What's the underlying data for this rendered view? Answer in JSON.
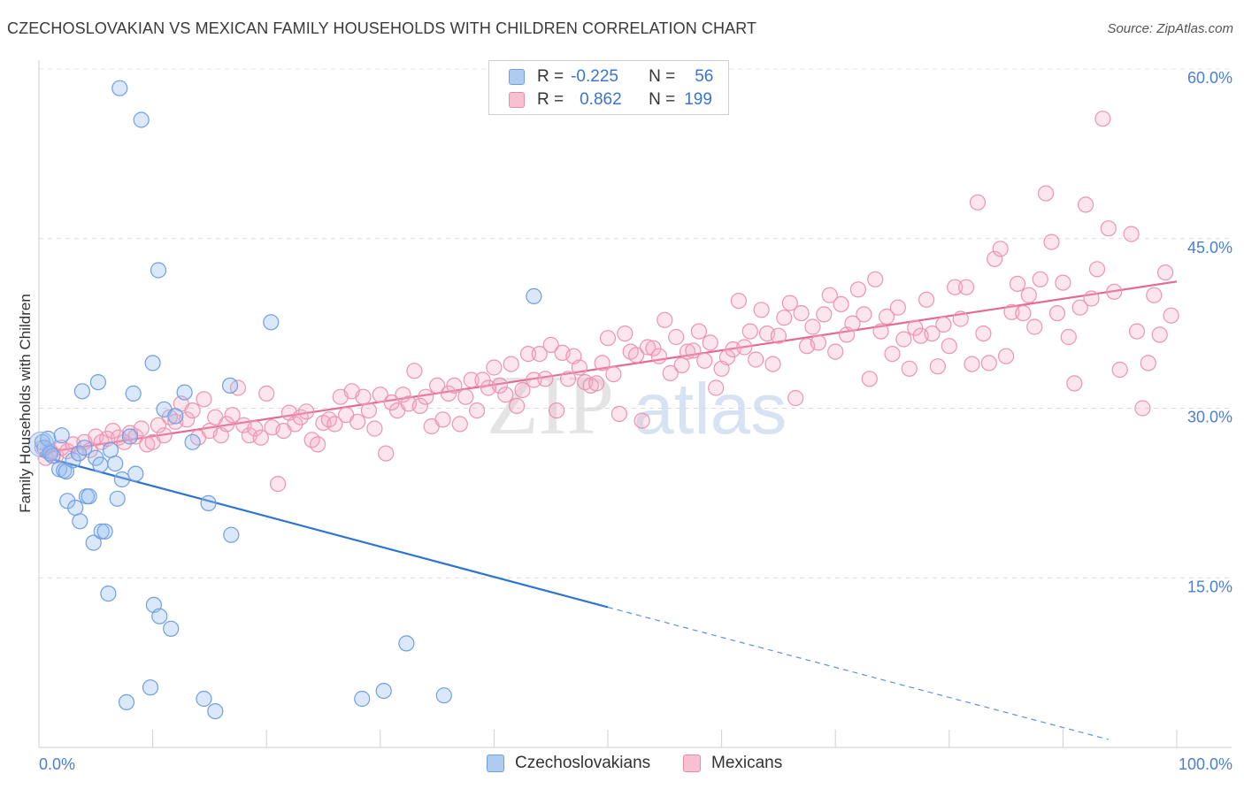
{
  "title": "CZECHOSLOVAKIAN VS MEXICAN FAMILY HOUSEHOLDS WITH CHILDREN CORRELATION CHART",
  "source": "Source: ZipAtlas.com",
  "watermark": "ZIPatlas",
  "legend": {
    "rows": [
      {
        "r_label": "R =",
        "r_value": "-0.225",
        "n_label": "N =",
        "n_value": "56",
        "color": "#aecbf0",
        "border": "#6f9fe0"
      },
      {
        "r_label": "R =",
        "r_value": "0.862",
        "n_label": "N =",
        "n_value": "199",
        "color": "#f8c0d0",
        "border": "#e88aa8"
      }
    ]
  },
  "bottom_legend": [
    {
      "label": "Czechoslovakians",
      "color": "#aecbf0",
      "border": "#6f9fe0"
    },
    {
      "label": "Mexicans",
      "color": "#f8c0d0",
      "border": "#e88aa8"
    }
  ],
  "chart_data": {
    "type": "scatter",
    "title": "CZECHOSLOVAKIAN VS MEXICAN FAMILY HOUSEHOLDS WITH CHILDREN CORRELATION CHART",
    "xlabel": "",
    "ylabel": "Family Households with Children",
    "xlim": [
      0,
      100
    ],
    "ylim": [
      0,
      60
    ],
    "x_tick_labels": [
      "0.0%",
      "100.0%"
    ],
    "y_ticks": [
      15,
      30,
      45,
      60
    ],
    "y_tick_labels": [
      "15.0%",
      "30.0%",
      "45.0%",
      "60.0%"
    ],
    "grid": true,
    "series": [
      {
        "name": "Czechoslovakians",
        "color": "#7aa8e8",
        "trend": {
          "x0": 0,
          "y0": 25.8,
          "x1": 50,
          "y1": 12.4,
          "dashed_to_x": 94,
          "dashed_to_y": 0.7
        },
        "points": [
          [
            0.3,
            27.0
          ],
          [
            0.5,
            26.5
          ],
          [
            0.8,
            27.3
          ],
          [
            1.0,
            26.0
          ],
          [
            1.2,
            25.8
          ],
          [
            1.8,
            24.6
          ],
          [
            2.0,
            27.6
          ],
          [
            2.2,
            24.5
          ],
          [
            2.4,
            24.4
          ],
          [
            2.5,
            21.8
          ],
          [
            3.0,
            25.4
          ],
          [
            3.2,
            21.2
          ],
          [
            3.5,
            26.0
          ],
          [
            3.6,
            20.0
          ],
          [
            3.8,
            31.5
          ],
          [
            4.0,
            26.5
          ],
          [
            4.2,
            22.2
          ],
          [
            4.4,
            22.2
          ],
          [
            4.8,
            18.1
          ],
          [
            5.0,
            25.6
          ],
          [
            5.2,
            32.3
          ],
          [
            5.4,
            25.0
          ],
          [
            5.5,
            19.1
          ],
          [
            5.8,
            19.1
          ],
          [
            6.1,
            13.6
          ],
          [
            6.3,
            26.3
          ],
          [
            6.7,
            25.1
          ],
          [
            6.9,
            22.0
          ],
          [
            7.1,
            58.3
          ],
          [
            7.3,
            23.7
          ],
          [
            7.7,
            4.0
          ],
          [
            8.0,
            27.5
          ],
          [
            8.3,
            31.3
          ],
          [
            8.5,
            24.2
          ],
          [
            9.0,
            55.5
          ],
          [
            9.8,
            5.3
          ],
          [
            10.0,
            34.0
          ],
          [
            10.1,
            12.6
          ],
          [
            10.5,
            42.2
          ],
          [
            10.6,
            11.6
          ],
          [
            11.0,
            29.9
          ],
          [
            11.6,
            10.5
          ],
          [
            12.0,
            29.3
          ],
          [
            12.8,
            31.4
          ],
          [
            13.5,
            27.0
          ],
          [
            14.5,
            4.3
          ],
          [
            14.9,
            21.6
          ],
          [
            15.5,
            3.2
          ],
          [
            16.8,
            32.0
          ],
          [
            16.9,
            18.8
          ],
          [
            20.4,
            37.6
          ],
          [
            28.4,
            4.3
          ],
          [
            30.3,
            5.0
          ],
          [
            32.3,
            9.2
          ],
          [
            35.6,
            4.6
          ],
          [
            43.5,
            39.9
          ]
        ]
      },
      {
        "name": "Mexicans",
        "color": "#f08aa8",
        "trend": {
          "x0": 0,
          "y0": 26.0,
          "x1": 100,
          "y1": 41.2
        },
        "points": [
          [
            0.3,
            26.5
          ],
          [
            0.6,
            25.6
          ],
          [
            1.0,
            26.2
          ],
          [
            1.5,
            25.8
          ],
          [
            2.0,
            26.5
          ],
          [
            2.5,
            26.2
          ],
          [
            3.0,
            26.8
          ],
          [
            3.5,
            26.0
          ],
          [
            4.0,
            27.0
          ],
          [
            4.5,
            26.3
          ],
          [
            5.0,
            27.5
          ],
          [
            5.5,
            27.0
          ],
          [
            6.0,
            27.3
          ],
          [
            6.5,
            28.0
          ],
          [
            7.0,
            27.4
          ],
          [
            7.5,
            27.0
          ],
          [
            8.0,
            27.8
          ],
          [
            8.5,
            27.5
          ],
          [
            9.0,
            28.2
          ],
          [
            9.5,
            26.8
          ],
          [
            10.0,
            27.0
          ],
          [
            10.5,
            28.5
          ],
          [
            11.0,
            27.6
          ],
          [
            11.5,
            29.2
          ],
          [
            12.0,
            28.8
          ],
          [
            12.5,
            30.4
          ],
          [
            13.0,
            29.0
          ],
          [
            13.5,
            29.8
          ],
          [
            14.0,
            27.4
          ],
          [
            14.5,
            30.8
          ],
          [
            15.0,
            28.0
          ],
          [
            15.5,
            29.2
          ],
          [
            16.0,
            27.6
          ],
          [
            16.5,
            28.6
          ],
          [
            17.0,
            29.4
          ],
          [
            17.5,
            31.8
          ],
          [
            18.0,
            28.5
          ],
          [
            18.5,
            27.6
          ],
          [
            19.0,
            28.2
          ],
          [
            19.5,
            27.4
          ],
          [
            20.0,
            31.3
          ],
          [
            20.5,
            28.3
          ],
          [
            21.0,
            23.3
          ],
          [
            21.5,
            28.0
          ],
          [
            22.0,
            29.6
          ],
          [
            22.5,
            28.6
          ],
          [
            23.0,
            29.2
          ],
          [
            23.5,
            29.7
          ],
          [
            24.0,
            27.2
          ],
          [
            24.5,
            26.8
          ],
          [
            25.0,
            28.7
          ],
          [
            25.5,
            29.0
          ],
          [
            26.0,
            28.6
          ],
          [
            26.5,
            31.0
          ],
          [
            27.0,
            29.4
          ],
          [
            27.5,
            31.5
          ],
          [
            28.0,
            28.8
          ],
          [
            28.5,
            31.0
          ],
          [
            29.0,
            29.8
          ],
          [
            29.5,
            28.2
          ],
          [
            30.0,
            31.2
          ],
          [
            30.5,
            26.0
          ],
          [
            31.0,
            30.5
          ],
          [
            31.5,
            29.8
          ],
          [
            32.0,
            31.2
          ],
          [
            32.5,
            30.4
          ],
          [
            33.0,
            33.3
          ],
          [
            33.5,
            30.2
          ],
          [
            34.0,
            31.0
          ],
          [
            34.5,
            28.4
          ],
          [
            35.0,
            32.0
          ],
          [
            35.5,
            29.0
          ],
          [
            36.0,
            31.3
          ],
          [
            36.5,
            32.0
          ],
          [
            37.0,
            28.6
          ],
          [
            37.5,
            31.0
          ],
          [
            38.0,
            32.5
          ],
          [
            38.5,
            29.8
          ],
          [
            39.0,
            32.5
          ],
          [
            39.5,
            31.8
          ],
          [
            40.0,
            33.6
          ],
          [
            40.5,
            32.0
          ],
          [
            41.0,
            31.2
          ],
          [
            41.5,
            33.9
          ],
          [
            42.0,
            30.2
          ],
          [
            42.5,
            31.6
          ],
          [
            43.0,
            34.8
          ],
          [
            43.5,
            32.5
          ],
          [
            44.0,
            34.8
          ],
          [
            44.5,
            32.6
          ],
          [
            45.0,
            35.6
          ],
          [
            45.5,
            29.8
          ],
          [
            46.0,
            34.9
          ],
          [
            46.5,
            32.6
          ],
          [
            47.0,
            34.6
          ],
          [
            47.5,
            33.6
          ],
          [
            48.0,
            32.3
          ],
          [
            48.5,
            32.0
          ],
          [
            49.0,
            32.2
          ],
          [
            49.5,
            34.0
          ],
          [
            50.0,
            36.2
          ],
          [
            50.5,
            33.0
          ],
          [
            51.0,
            29.5
          ],
          [
            51.5,
            36.6
          ],
          [
            52.0,
            35.0
          ],
          [
            52.5,
            34.7
          ],
          [
            53.0,
            28.9
          ],
          [
            53.5,
            35.4
          ],
          [
            54.0,
            35.3
          ],
          [
            54.5,
            34.6
          ],
          [
            55.0,
            37.8
          ],
          [
            55.5,
            33.1
          ],
          [
            56.0,
            36.3
          ],
          [
            56.5,
            33.8
          ],
          [
            57.0,
            35.0
          ],
          [
            57.5,
            35.1
          ],
          [
            58.0,
            36.8
          ],
          [
            58.5,
            34.2
          ],
          [
            59.0,
            35.8
          ],
          [
            59.5,
            31.8
          ],
          [
            60.0,
            33.5
          ],
          [
            60.5,
            34.5
          ],
          [
            61.0,
            35.2
          ],
          [
            61.5,
            39.5
          ],
          [
            62.0,
            35.4
          ],
          [
            62.5,
            36.8
          ],
          [
            63.0,
            34.3
          ],
          [
            63.5,
            38.7
          ],
          [
            64.0,
            36.6
          ],
          [
            64.5,
            33.9
          ],
          [
            65.0,
            36.4
          ],
          [
            65.5,
            38.0
          ],
          [
            66.0,
            39.3
          ],
          [
            66.5,
            30.9
          ],
          [
            67.0,
            38.4
          ],
          [
            67.5,
            35.5
          ],
          [
            68.0,
            37.2
          ],
          [
            68.5,
            35.8
          ],
          [
            69.0,
            38.3
          ],
          [
            69.5,
            40.0
          ],
          [
            70.0,
            35.0
          ],
          [
            70.5,
            39.2
          ],
          [
            71.0,
            36.5
          ],
          [
            71.5,
            37.5
          ],
          [
            72.0,
            40.5
          ],
          [
            72.5,
            38.3
          ],
          [
            73.0,
            32.6
          ],
          [
            73.5,
            41.4
          ],
          [
            74.0,
            36.8
          ],
          [
            74.5,
            38.1
          ],
          [
            75.0,
            34.8
          ],
          [
            75.5,
            38.9
          ],
          [
            76.0,
            36.1
          ],
          [
            76.5,
            33.5
          ],
          [
            77.0,
            37.1
          ],
          [
            77.5,
            36.4
          ],
          [
            78.0,
            39.6
          ],
          [
            78.5,
            36.6
          ],
          [
            79.0,
            33.7
          ],
          [
            79.5,
            37.4
          ],
          [
            80.0,
            35.5
          ],
          [
            80.5,
            40.7
          ],
          [
            81.0,
            37.9
          ],
          [
            81.5,
            40.7
          ],
          [
            82.0,
            33.9
          ],
          [
            82.5,
            48.2
          ],
          [
            83.0,
            36.6
          ],
          [
            83.5,
            34.0
          ],
          [
            84.0,
            43.2
          ],
          [
            84.5,
            44.1
          ],
          [
            85.0,
            34.6
          ],
          [
            85.5,
            38.5
          ],
          [
            86.0,
            41.0
          ],
          [
            86.5,
            38.4
          ],
          [
            87.0,
            40.0
          ],
          [
            87.5,
            37.2
          ],
          [
            88.0,
            41.4
          ],
          [
            88.5,
            49.0
          ],
          [
            89.0,
            44.7
          ],
          [
            89.5,
            38.4
          ],
          [
            90.0,
            41.1
          ],
          [
            90.5,
            36.3
          ],
          [
            91.0,
            32.2
          ],
          [
            91.5,
            38.9
          ],
          [
            92.0,
            48.0
          ],
          [
            92.5,
            39.7
          ],
          [
            93.0,
            42.3
          ],
          [
            93.5,
            55.6
          ],
          [
            94.0,
            45.9
          ],
          [
            94.5,
            40.3
          ],
          [
            95.0,
            33.4
          ],
          [
            96.0,
            45.4
          ],
          [
            96.5,
            36.8
          ],
          [
            97.0,
            30.0
          ],
          [
            97.5,
            34.0
          ],
          [
            98.0,
            40.0
          ],
          [
            98.5,
            36.5
          ],
          [
            99.0,
            42.0
          ],
          [
            99.5,
            38.2
          ]
        ]
      }
    ]
  }
}
